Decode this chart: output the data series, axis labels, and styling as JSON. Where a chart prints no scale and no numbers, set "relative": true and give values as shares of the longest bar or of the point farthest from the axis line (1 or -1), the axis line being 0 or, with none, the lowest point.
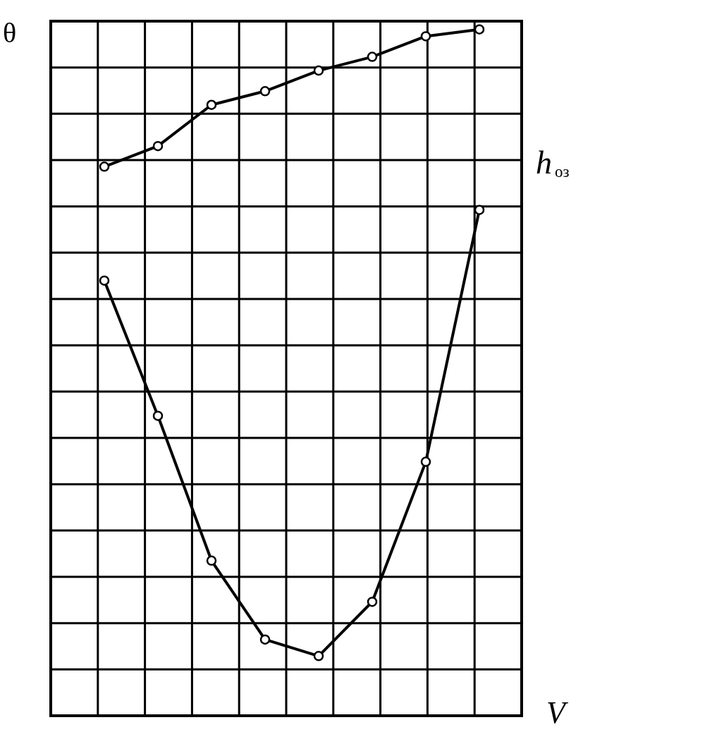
{
  "chart_data": {
    "type": "line",
    "relative": true,
    "xlabel": "V",
    "ylabel": "θ",
    "categories": [
      null,
      null,
      null,
      null,
      null,
      null,
      null,
      null
    ],
    "grid": true,
    "legend": false,
    "marker": "circle",
    "series": [
      {
        "color": "#000000",
        "values": [
          0.8,
          0.83,
          0.89,
          0.91,
          0.94,
          0.96,
          0.99,
          1.0
        ]
      },
      {
        "name": "h$_{оз}$",
        "color": "#000000",
        "values": [
          0.634,
          0.437,
          0.226,
          0.111,
          0.087,
          0.166,
          0.37,
          0.737
        ]
      }
    ]
  }
}
